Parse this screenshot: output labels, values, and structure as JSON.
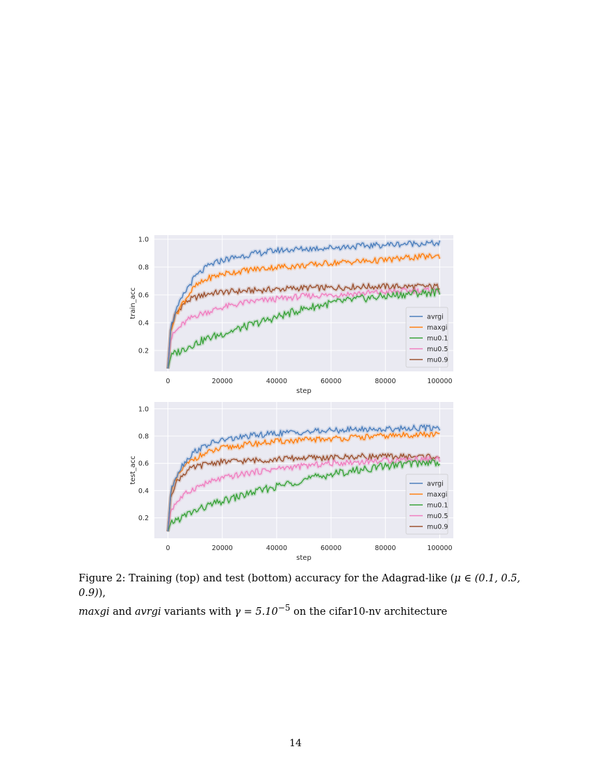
{
  "page": {
    "number": "14"
  },
  "caption": {
    "lead": "Figure 2: Training (top) and test (bottom) accuracy for the Adagrad-like (",
    "mu_math": "μ ∈ (0.1, 0.5, 0.9)",
    "after_mu": "),",
    "maxgi": "maxgi",
    "and": " and ",
    "avrgi": "avrgi",
    "variants": " variants with ",
    "gamma_math": "γ = 5.10",
    "gamma_exp": "−5",
    "tail": " on the cifar10-nv architecture"
  },
  "colors": {
    "avrgi": "#4c7fbd",
    "maxgi": "#ff7f0e",
    "mu0.1": "#3aa33a",
    "mu0.5": "#f07fc0",
    "mu0.9": "#9c5230",
    "axes_bg": "#eaeaf2",
    "grid": "#ffffff"
  },
  "chart_data": [
    {
      "type": "line",
      "panel": "top",
      "xlabel": "step",
      "ylabel": "train_acc",
      "xlim": [
        -5000,
        105000
      ],
      "ylim": [
        0.05,
        1.03
      ],
      "xticks": [
        0,
        20000,
        40000,
        60000,
        80000,
        100000
      ],
      "xtick_labels": [
        "0",
        "20000",
        "40000",
        "60000",
        "80000",
        "100000"
      ],
      "yticks": [
        0.2,
        0.4,
        0.6,
        0.8,
        1.0
      ],
      "ytick_labels": [
        "0.2",
        "0.4",
        "0.6",
        "0.8",
        "1.0"
      ],
      "grid": true,
      "legend_position": "lower-right",
      "series": [
        {
          "name": "avrgi",
          "x": [
            0,
            1000,
            2500,
            5000,
            7500,
            10000,
            15000,
            20000,
            30000,
            40000,
            50000,
            60000,
            70000,
            80000,
            90000,
            100000
          ],
          "y": [
            0.07,
            0.36,
            0.46,
            0.57,
            0.66,
            0.73,
            0.81,
            0.85,
            0.89,
            0.92,
            0.93,
            0.94,
            0.95,
            0.96,
            0.97,
            0.97
          ]
        },
        {
          "name": "maxgi",
          "x": [
            0,
            1000,
            2500,
            5000,
            7500,
            10000,
            15000,
            20000,
            30000,
            40000,
            50000,
            60000,
            70000,
            80000,
            90000,
            100000
          ],
          "y": [
            0.07,
            0.35,
            0.44,
            0.53,
            0.6,
            0.66,
            0.72,
            0.75,
            0.78,
            0.8,
            0.81,
            0.83,
            0.84,
            0.85,
            0.87,
            0.88
          ]
        },
        {
          "name": "mu0.1",
          "x": [
            0,
            1000,
            2500,
            5000,
            7500,
            10000,
            15000,
            20000,
            30000,
            40000,
            50000,
            60000,
            70000,
            80000,
            90000,
            100000
          ],
          "y": [
            0.07,
            0.15,
            0.18,
            0.2,
            0.23,
            0.25,
            0.29,
            0.32,
            0.38,
            0.44,
            0.5,
            0.54,
            0.57,
            0.59,
            0.61,
            0.62
          ]
        },
        {
          "name": "mu0.5",
          "x": [
            0,
            1000,
            2500,
            5000,
            7500,
            10000,
            15000,
            20000,
            30000,
            40000,
            50000,
            60000,
            70000,
            80000,
            90000,
            100000
          ],
          "y": [
            0.07,
            0.28,
            0.33,
            0.38,
            0.42,
            0.45,
            0.48,
            0.51,
            0.55,
            0.57,
            0.59,
            0.6,
            0.61,
            0.62,
            0.63,
            0.63
          ]
        },
        {
          "name": "mu0.9",
          "x": [
            0,
            1000,
            2500,
            5000,
            7500,
            10000,
            15000,
            20000,
            30000,
            40000,
            50000,
            60000,
            70000,
            80000,
            90000,
            100000
          ],
          "y": [
            0.07,
            0.36,
            0.45,
            0.52,
            0.56,
            0.58,
            0.61,
            0.62,
            0.63,
            0.64,
            0.65,
            0.65,
            0.66,
            0.66,
            0.66,
            0.66
          ]
        }
      ]
    },
    {
      "type": "line",
      "panel": "bottom",
      "xlabel": "step",
      "ylabel": "test_acc",
      "xlim": [
        -5000,
        105000
      ],
      "ylim": [
        0.05,
        1.05
      ],
      "xticks": [
        0,
        20000,
        40000,
        60000,
        80000,
        100000
      ],
      "xtick_labels": [
        "0",
        "20000",
        "40000",
        "60000",
        "80000",
        "100000"
      ],
      "yticks": [
        0.2,
        0.4,
        0.6,
        0.8,
        1.0
      ],
      "ytick_labels": [
        "0.2",
        "0.4",
        "0.6",
        "0.8",
        "1.0"
      ],
      "grid": true,
      "legend_position": "lower-right",
      "series": [
        {
          "name": "avrgi",
          "x": [
            0,
            1000,
            2500,
            5000,
            7500,
            10000,
            15000,
            20000,
            30000,
            40000,
            50000,
            60000,
            70000,
            80000,
            90000,
            100000
          ],
          "y": [
            0.1,
            0.38,
            0.49,
            0.58,
            0.64,
            0.69,
            0.74,
            0.77,
            0.8,
            0.82,
            0.83,
            0.84,
            0.85,
            0.85,
            0.86,
            0.86
          ]
        },
        {
          "name": "maxgi",
          "x": [
            0,
            1000,
            2500,
            5000,
            7500,
            10000,
            15000,
            20000,
            30000,
            40000,
            50000,
            60000,
            70000,
            80000,
            90000,
            100000
          ],
          "y": [
            0.1,
            0.37,
            0.46,
            0.55,
            0.6,
            0.64,
            0.68,
            0.71,
            0.74,
            0.76,
            0.77,
            0.78,
            0.79,
            0.8,
            0.81,
            0.81
          ]
        },
        {
          "name": "mu0.1",
          "x": [
            0,
            1000,
            2500,
            5000,
            7500,
            10000,
            15000,
            20000,
            30000,
            40000,
            50000,
            60000,
            70000,
            80000,
            90000,
            100000
          ],
          "y": [
            0.1,
            0.16,
            0.18,
            0.2,
            0.23,
            0.25,
            0.29,
            0.32,
            0.38,
            0.43,
            0.48,
            0.52,
            0.55,
            0.58,
            0.6,
            0.61
          ]
        },
        {
          "name": "mu0.5",
          "x": [
            0,
            1000,
            2500,
            5000,
            7500,
            10000,
            15000,
            20000,
            30000,
            40000,
            50000,
            60000,
            70000,
            80000,
            90000,
            100000
          ],
          "y": [
            0.1,
            0.25,
            0.3,
            0.35,
            0.39,
            0.42,
            0.46,
            0.49,
            0.53,
            0.56,
            0.58,
            0.6,
            0.61,
            0.62,
            0.63,
            0.63
          ]
        },
        {
          "name": "mu0.9",
          "x": [
            0,
            1000,
            2500,
            5000,
            7500,
            10000,
            15000,
            20000,
            30000,
            40000,
            50000,
            60000,
            70000,
            80000,
            90000,
            100000
          ],
          "y": [
            0.1,
            0.36,
            0.44,
            0.51,
            0.55,
            0.57,
            0.6,
            0.61,
            0.62,
            0.63,
            0.64,
            0.64,
            0.65,
            0.65,
            0.65,
            0.65
          ]
        }
      ]
    }
  ]
}
